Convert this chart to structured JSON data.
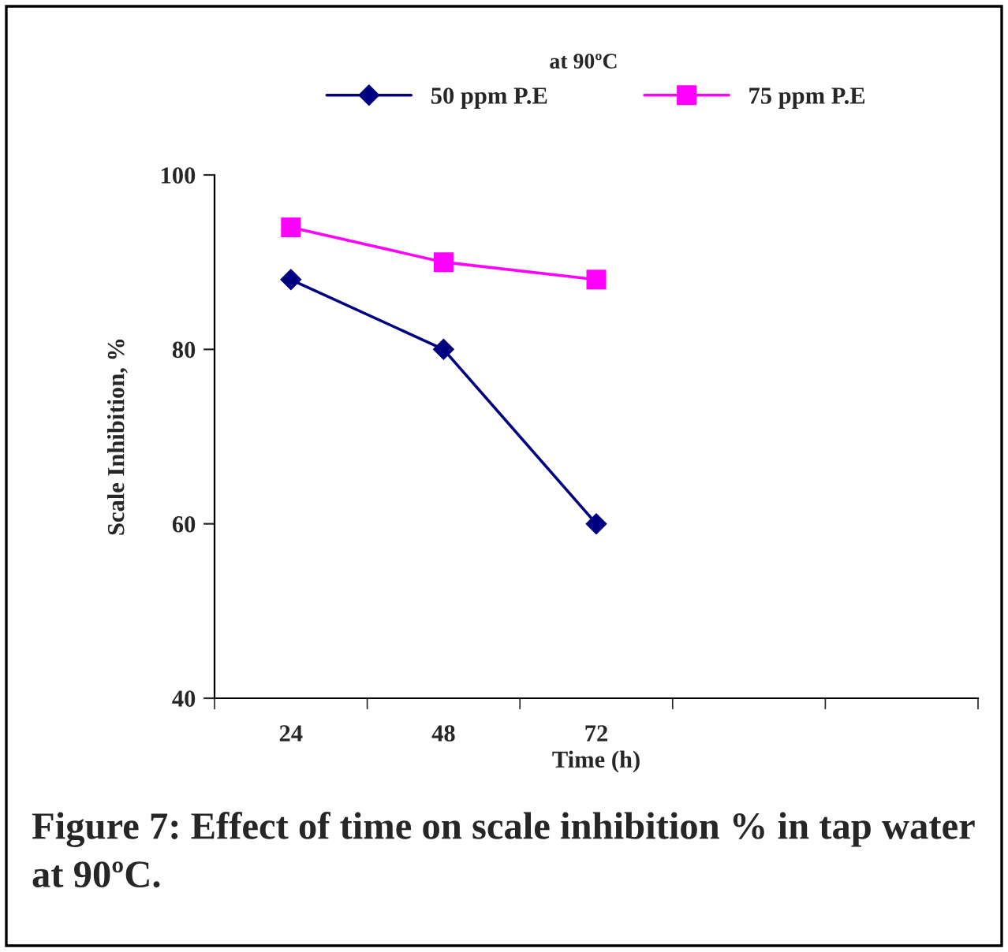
{
  "chart_data": {
    "type": "line",
    "title": "at 90ºC",
    "xlabel": "Time (h)",
    "ylabel": "Scale Inhibition, %",
    "categories": [
      "24",
      "48",
      "72",
      null,
      null
    ],
    "series": [
      {
        "name": "50 ppm P.E",
        "color": "#000080",
        "marker": "diamond",
        "values": [
          88,
          80,
          60,
          null,
          null
        ]
      },
      {
        "name": "75 ppm P.E",
        "color": "#ff00ff",
        "marker": "square",
        "values": [
          94,
          90,
          88,
          null,
          null
        ]
      }
    ],
    "ylim": [
      40,
      100
    ],
    "yticks": [
      40,
      60,
      80,
      100
    ],
    "grid": false,
    "legend": "top",
    "line_style": "solid",
    "annotations": [
      "Figure 7: Effect of time on scale inhibition % in tap water at 90ºC."
    ]
  }
}
